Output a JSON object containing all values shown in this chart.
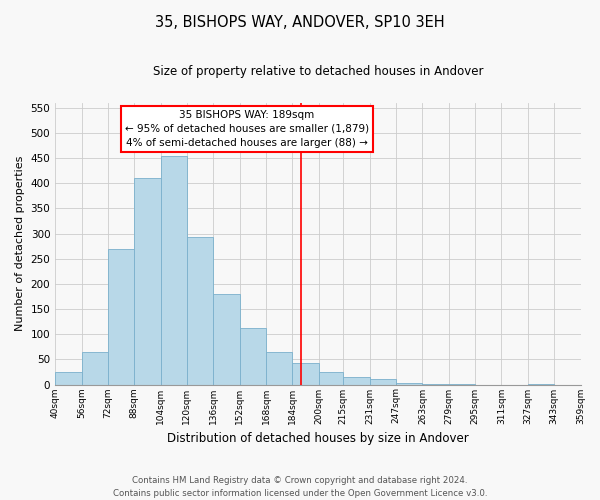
{
  "title": "35, BISHOPS WAY, ANDOVER, SP10 3EH",
  "subtitle": "Size of property relative to detached houses in Andover",
  "xlabel": "Distribution of detached houses by size in Andover",
  "ylabel": "Number of detached properties",
  "bar_color": "#b8d8e8",
  "bar_edge_color": "#7ab0cc",
  "bin_edges": [
    40,
    56,
    72,
    88,
    104,
    120,
    136,
    152,
    168,
    184,
    200,
    215,
    231,
    247,
    263,
    279,
    295,
    311,
    327,
    343,
    359
  ],
  "bin_labels": [
    "40sqm",
    "56sqm",
    "72sqm",
    "88sqm",
    "104sqm",
    "120sqm",
    "136sqm",
    "152sqm",
    "168sqm",
    "184sqm",
    "200sqm",
    "215sqm",
    "231sqm",
    "247sqm",
    "263sqm",
    "279sqm",
    "295sqm",
    "311sqm",
    "327sqm",
    "343sqm",
    "359sqm"
  ],
  "counts": [
    25,
    65,
    270,
    410,
    455,
    293,
    180,
    113,
    65,
    43,
    25,
    15,
    11,
    4,
    2,
    1,
    0,
    0,
    1,
    0
  ],
  "property_line_x": 189,
  "property_line_color": "red",
  "annotation_line1": "35 BISHOPS WAY: 189sqm",
  "annotation_line2": "← 95% of detached houses are smaller (1,879)",
  "annotation_line3": "4% of semi-detached houses are larger (88) →",
  "ylim": [
    0,
    560
  ],
  "yticks": [
    0,
    50,
    100,
    150,
    200,
    250,
    300,
    350,
    400,
    450,
    500,
    550
  ],
  "footer_line1": "Contains HM Land Registry data © Crown copyright and database right 2024.",
  "footer_line2": "Contains public sector information licensed under the Open Government Licence v3.0.",
  "background_color": "#f8f8f8",
  "grid_color": "#cccccc"
}
